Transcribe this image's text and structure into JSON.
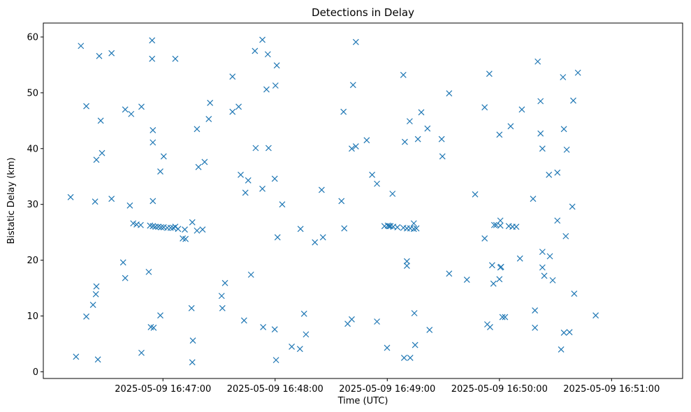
{
  "chart_data": {
    "type": "scatter",
    "title": "Detections in Delay",
    "xlabel": "Time (UTC)",
    "ylabel": "Bistatic Delay (km)",
    "marker": "x",
    "color": "#1f77b4",
    "grid": false,
    "legend": "none",
    "xlim": [
      "2025-05-09 16:45:56",
      "2025-05-09 16:51:38"
    ],
    "ylim": [
      -1.2,
      62.5
    ],
    "x_ticks": [
      "2025-05-09 16:47:00",
      "2025-05-09 16:48:00",
      "2025-05-09 16:49:00",
      "2025-05-09 16:50:00",
      "2025-05-09 16:51:00"
    ],
    "x_tick_labels": [
      "2025-05-09 16:47:00",
      "2025-05-09 16:48:00",
      "2025-05-09 16:49:00",
      "2025-05-09 16:50:00",
      "2025-05-09 16:51:00"
    ],
    "y_ticks": [
      0,
      10,
      20,
      30,
      40,
      50,
      60
    ],
    "y_tick_labels": [
      "0",
      "10",
      "20",
      "30",
      "40",
      "50",
      "60"
    ],
    "points": [
      {
        "x": "2025-05-09 16:46:10.6",
        "y": 31.3
      },
      {
        "x": "2025-05-09 16:46:13.5",
        "y": 2.7
      },
      {
        "x": "2025-05-09 16:46:16.1",
        "y": 58.4
      },
      {
        "x": "2025-05-09 16:46:19.0",
        "y": 47.6
      },
      {
        "x": "2025-05-09 16:46:19.0",
        "y": 9.9
      },
      {
        "x": "2025-05-09 16:46:22.6",
        "y": 12.0
      },
      {
        "x": "2025-05-09 16:46:23.7",
        "y": 30.5
      },
      {
        "x": "2025-05-09 16:46:24.1",
        "y": 13.9
      },
      {
        "x": "2025-05-09 16:46:24.4",
        "y": 38.0
      },
      {
        "x": "2025-05-09 16:46:24.4",
        "y": 15.3
      },
      {
        "x": "2025-05-09 16:46:25.2",
        "y": 2.2
      },
      {
        "x": "2025-05-09 16:46:25.9",
        "y": 56.6
      },
      {
        "x": "2025-05-09 16:46:26.7",
        "y": 45.0
      },
      {
        "x": "2025-05-09 16:46:27.4",
        "y": 39.2
      },
      {
        "x": "2025-05-09 16:46:32.5",
        "y": 57.1
      },
      {
        "x": "2025-05-09 16:46:32.5",
        "y": 31.0
      },
      {
        "x": "2025-05-09 16:46:38.7",
        "y": 19.6
      },
      {
        "x": "2025-05-09 16:46:39.8",
        "y": 16.8
      },
      {
        "x": "2025-05-09 16:46:39.8",
        "y": 47.0
      },
      {
        "x": "2025-05-09 16:46:42.3",
        "y": 29.8
      },
      {
        "x": "2025-05-09 16:46:43.0",
        "y": 46.2
      },
      {
        "x": "2025-05-09 16:46:44.1",
        "y": 26.6
      },
      {
        "x": "2025-05-09 16:46:45.9",
        "y": 26.4
      },
      {
        "x": "2025-05-09 16:46:48.1",
        "y": 26.3
      },
      {
        "x": "2025-05-09 16:46:48.5",
        "y": 3.4
      },
      {
        "x": "2025-05-09 16:46:48.5",
        "y": 47.5
      },
      {
        "x": "2025-05-09 16:46:52.4",
        "y": 17.9
      },
      {
        "x": "2025-05-09 16:46:53.1",
        "y": 26.2
      },
      {
        "x": "2025-05-09 16:46:53.5",
        "y": 8.0
      },
      {
        "x": "2025-05-09 16:46:54.2",
        "y": 59.4
      },
      {
        "x": "2025-05-09 16:46:54.2",
        "y": 56.1
      },
      {
        "x": "2025-05-09 16:46:54.6",
        "y": 43.3
      },
      {
        "x": "2025-05-09 16:46:54.6",
        "y": 41.1
      },
      {
        "x": "2025-05-09 16:46:54.6",
        "y": 30.6
      },
      {
        "x": "2025-05-09 16:46:54.6",
        "y": 26.1
      },
      {
        "x": "2025-05-09 16:46:55.0",
        "y": 7.9
      },
      {
        "x": "2025-05-09 16:46:56.0",
        "y": 26.0
      },
      {
        "x": "2025-05-09 16:46:57.5",
        "y": 26.0
      },
      {
        "x": "2025-05-09 16:46:58.6",
        "y": 35.9
      },
      {
        "x": "2025-05-09 16:46:58.6",
        "y": 10.1
      },
      {
        "x": "2025-05-09 16:46:59.0",
        "y": 25.9
      },
      {
        "x": "2025-05-09 16:47:00.4",
        "y": 38.6
      },
      {
        "x": "2025-05-09 16:47:00.4",
        "y": 25.9
      },
      {
        "x": "2025-05-09 16:47:02.3",
        "y": 25.8
      },
      {
        "x": "2025-05-09 16:47:04.1",
        "y": 25.8
      },
      {
        "x": "2025-05-09 16:47:05.5",
        "y": 25.8
      },
      {
        "x": "2025-05-09 16:47:06.6",
        "y": 56.1
      },
      {
        "x": "2025-05-09 16:47:06.6",
        "y": 26.0
      },
      {
        "x": "2025-05-09 16:47:08.1",
        "y": 25.6
      },
      {
        "x": "2025-05-09 16:47:10.6",
        "y": 23.9
      },
      {
        "x": "2025-05-09 16:47:11.7",
        "y": 25.5
      },
      {
        "x": "2025-05-09 16:47:12.1",
        "y": 23.8
      },
      {
        "x": "2025-05-09 16:47:15.3",
        "y": 11.4
      },
      {
        "x": "2025-05-09 16:47:15.7",
        "y": 26.8
      },
      {
        "x": "2025-05-09 16:47:15.7",
        "y": 1.7
      },
      {
        "x": "2025-05-09 16:47:16.0",
        "y": 5.6
      },
      {
        "x": "2025-05-09 16:47:18.2",
        "y": 43.5
      },
      {
        "x": "2025-05-09 16:47:18.2",
        "y": 25.3
      },
      {
        "x": "2025-05-09 16:47:19.0",
        "y": 36.7
      },
      {
        "x": "2025-05-09 16:47:21.2",
        "y": 25.5
      },
      {
        "x": "2025-05-09 16:47:22.3",
        "y": 37.6
      },
      {
        "x": "2025-05-09 16:47:24.5",
        "y": 45.3
      },
      {
        "x": "2025-05-09 16:47:25.2",
        "y": 48.2
      },
      {
        "x": "2025-05-09 16:47:31.4",
        "y": 13.6
      },
      {
        "x": "2025-05-09 16:47:31.8",
        "y": 11.4
      },
      {
        "x": "2025-05-09 16:47:33.2",
        "y": 15.9
      },
      {
        "x": "2025-05-09 16:47:37.2",
        "y": 52.9
      },
      {
        "x": "2025-05-09 16:47:37.2",
        "y": 46.6
      },
      {
        "x": "2025-05-09 16:47:40.5",
        "y": 47.5
      },
      {
        "x": "2025-05-09 16:47:41.6",
        "y": 35.3
      },
      {
        "x": "2025-05-09 16:47:43.4",
        "y": 9.2
      },
      {
        "x": "2025-05-09 16:47:44.1",
        "y": 32.1
      },
      {
        "x": "2025-05-09 16:47:45.6",
        "y": 34.3
      },
      {
        "x": "2025-05-09 16:47:47.1",
        "y": 17.4
      },
      {
        "x": "2025-05-09 16:47:49.2",
        "y": 57.5
      },
      {
        "x": "2025-05-09 16:47:49.6",
        "y": 40.1
      },
      {
        "x": "2025-05-09 16:47:53.2",
        "y": 59.5
      },
      {
        "x": "2025-05-09 16:47:53.2",
        "y": 32.8
      },
      {
        "x": "2025-05-09 16:47:53.6",
        "y": 8.0
      },
      {
        "x": "2025-05-09 16:47:55.4",
        "y": 50.6
      },
      {
        "x": "2025-05-09 16:47:56.1",
        "y": 56.9
      },
      {
        "x": "2025-05-09 16:47:56.5",
        "y": 40.1
      },
      {
        "x": "2025-05-09 16:47:59.8",
        "y": 7.6
      },
      {
        "x": "2025-05-09 16:47:59.8",
        "y": 34.6
      },
      {
        "x": "2025-05-09 16:48:00.2",
        "y": 51.3
      },
      {
        "x": "2025-05-09 16:48:00.5",
        "y": 2.1
      },
      {
        "x": "2025-05-09 16:48:00.9",
        "y": 54.9
      },
      {
        "x": "2025-05-09 16:48:01.3",
        "y": 24.1
      },
      {
        "x": "2025-05-09 16:48:03.8",
        "y": 30.0
      },
      {
        "x": "2025-05-09 16:48:08.9",
        "y": 4.5
      },
      {
        "x": "2025-05-09 16:48:13.3",
        "y": 4.1
      },
      {
        "x": "2025-05-09 16:48:13.6",
        "y": 25.6
      },
      {
        "x": "2025-05-09 16:48:15.5",
        "y": 10.4
      },
      {
        "x": "2025-05-09 16:48:16.5",
        "y": 6.7
      },
      {
        "x": "2025-05-09 16:48:21.3",
        "y": 23.2
      },
      {
        "x": "2025-05-09 16:48:24.9",
        "y": 32.6
      },
      {
        "x": "2025-05-09 16:48:25.6",
        "y": 24.1
      },
      {
        "x": "2025-05-09 16:48:35.5",
        "y": 30.6
      },
      {
        "x": "2025-05-09 16:48:36.6",
        "y": 46.6
      },
      {
        "x": "2025-05-09 16:48:37.0",
        "y": 25.7
      },
      {
        "x": "2025-05-09 16:48:38.8",
        "y": 8.6
      },
      {
        "x": "2025-05-09 16:48:41.0",
        "y": 40.0
      },
      {
        "x": "2025-05-09 16:48:41.0",
        "y": 9.4
      },
      {
        "x": "2025-05-09 16:48:41.7",
        "y": 51.4
      },
      {
        "x": "2025-05-09 16:48:43.2",
        "y": 59.1
      },
      {
        "x": "2025-05-09 16:48:43.2",
        "y": 40.4
      },
      {
        "x": "2025-05-09 16:48:49.0",
        "y": 41.5
      },
      {
        "x": "2025-05-09 16:48:51.9",
        "y": 35.3
      },
      {
        "x": "2025-05-09 16:48:54.5",
        "y": 33.7
      },
      {
        "x": "2025-05-09 16:48:54.5",
        "y": 9.0
      },
      {
        "x": "2025-05-09 16:48:58.5",
        "y": 26.1
      },
      {
        "x": "2025-05-09 16:48:59.9",
        "y": 4.3
      },
      {
        "x": "2025-05-09 16:49:00.3",
        "y": 26.2
      },
      {
        "x": "2025-05-09 16:49:01.0",
        "y": 26.1
      },
      {
        "x": "2025-05-09 16:49:01.7",
        "y": 26.1
      },
      {
        "x": "2025-05-09 16:49:02.8",
        "y": 31.9
      },
      {
        "x": "2025-05-09 16:49:03.2",
        "y": 26.0
      },
      {
        "x": "2025-05-09 16:49:05.4",
        "y": 25.9
      },
      {
        "x": "2025-05-09 16:49:08.6",
        "y": 53.2
      },
      {
        "x": "2025-05-09 16:49:08.6",
        "y": 25.8
      },
      {
        "x": "2025-05-09 16:49:09.0",
        "y": 2.5
      },
      {
        "x": "2025-05-09 16:49:09.4",
        "y": 41.2
      },
      {
        "x": "2025-05-09 16:49:10.5",
        "y": 19.8
      },
      {
        "x": "2025-05-09 16:49:10.5",
        "y": 19.0
      },
      {
        "x": "2025-05-09 16:49:10.5",
        "y": 25.7
      },
      {
        "x": "2025-05-09 16:49:12.0",
        "y": 44.9
      },
      {
        "x": "2025-05-09 16:49:12.3",
        "y": 25.7
      },
      {
        "x": "2025-05-09 16:49:12.3",
        "y": 2.5
      },
      {
        "x": "2025-05-09 16:49:14.2",
        "y": 26.6
      },
      {
        "x": "2025-05-09 16:49:14.2",
        "y": 25.6
      },
      {
        "x": "2025-05-09 16:49:14.5",
        "y": 10.5
      },
      {
        "x": "2025-05-09 16:49:14.9",
        "y": 4.8
      },
      {
        "x": "2025-05-09 16:49:15.6",
        "y": 25.7
      },
      {
        "x": "2025-05-09 16:49:16.4",
        "y": 41.7
      },
      {
        "x": "2025-05-09 16:49:18.2",
        "y": 46.5
      },
      {
        "x": "2025-05-09 16:49:21.5",
        "y": 43.6
      },
      {
        "x": "2025-05-09 16:49:22.6",
        "y": 7.5
      },
      {
        "x": "2025-05-09 16:49:29.1",
        "y": 41.7
      },
      {
        "x": "2025-05-09 16:49:29.5",
        "y": 38.6
      },
      {
        "x": "2025-05-09 16:49:33.1",
        "y": 49.9
      },
      {
        "x": "2025-05-09 16:49:33.1",
        "y": 17.6
      },
      {
        "x": "2025-05-09 16:49:42.6",
        "y": 16.5
      },
      {
        "x": "2025-05-09 16:49:47.0",
        "y": 31.8
      },
      {
        "x": "2025-05-09 16:49:52.1",
        "y": 47.4
      },
      {
        "x": "2025-05-09 16:49:52.1",
        "y": 23.9
      },
      {
        "x": "2025-05-09 16:49:53.5",
        "y": 8.5
      },
      {
        "x": "2025-05-09 16:49:54.6",
        "y": 53.4
      },
      {
        "x": "2025-05-09 16:49:55.0",
        "y": 8.0
      },
      {
        "x": "2025-05-09 16:49:56.1",
        "y": 19.1
      },
      {
        "x": "2025-05-09 16:49:56.8",
        "y": 15.8
      },
      {
        "x": "2025-05-09 16:49:57.2",
        "y": 26.3
      },
      {
        "x": "2025-05-09 16:49:58.3",
        "y": 26.3
      },
      {
        "x": "2025-05-09 16:50:00.0",
        "y": 42.5
      },
      {
        "x": "2025-05-09 16:50:00.0",
        "y": 16.6
      },
      {
        "x": "2025-05-09 16:50:00.5",
        "y": 26.2
      },
      {
        "x": "2025-05-09 16:50:00.5",
        "y": 27.1
      },
      {
        "x": "2025-05-09 16:50:00.5",
        "y": 18.7
      },
      {
        "x": "2025-05-09 16:50:00.9",
        "y": 18.8
      },
      {
        "x": "2025-05-09 16:50:01.6",
        "y": 9.8
      },
      {
        "x": "2025-05-09 16:50:03.0",
        "y": 9.8
      },
      {
        "x": "2025-05-09 16:50:05.0",
        "y": 26.1
      },
      {
        "x": "2025-05-09 16:50:06.0",
        "y": 44.0
      },
      {
        "x": "2025-05-09 16:50:07.0",
        "y": 26.0
      },
      {
        "x": "2025-05-09 16:50:09.0",
        "y": 26.0
      },
      {
        "x": "2025-05-09 16:50:11.0",
        "y": 20.3
      },
      {
        "x": "2025-05-09 16:50:12.0",
        "y": 47.0
      },
      {
        "x": "2025-05-09 16:50:18.0",
        "y": 31.0
      },
      {
        "x": "2025-05-09 16:50:19.0",
        "y": 11.0
      },
      {
        "x": "2025-05-09 16:50:19.0",
        "y": 7.9
      },
      {
        "x": "2025-05-09 16:50:20.5",
        "y": 55.6
      },
      {
        "x": "2025-05-09 16:50:22.0",
        "y": 48.5
      },
      {
        "x": "2025-05-09 16:50:22.0",
        "y": 42.7
      },
      {
        "x": "2025-05-09 16:50:23.0",
        "y": 40.0
      },
      {
        "x": "2025-05-09 16:50:23.0",
        "y": 21.5
      },
      {
        "x": "2025-05-09 16:50:23.0",
        "y": 18.7
      },
      {
        "x": "2025-05-09 16:50:24.0",
        "y": 17.2
      },
      {
        "x": "2025-05-09 16:50:26.5",
        "y": 35.3
      },
      {
        "x": "2025-05-09 16:50:27.0",
        "y": 20.7
      },
      {
        "x": "2025-05-09 16:50:28.5",
        "y": 16.4
      },
      {
        "x": "2025-05-09 16:50:31.0",
        "y": 35.7
      },
      {
        "x": "2025-05-09 16:50:31.0",
        "y": 27.1
      },
      {
        "x": "2025-05-09 16:50:33.0",
        "y": 4.0
      },
      {
        "x": "2025-05-09 16:50:34.0",
        "y": 52.8
      },
      {
        "x": "2025-05-09 16:50:34.5",
        "y": 43.5
      },
      {
        "x": "2025-05-09 16:50:34.5",
        "y": 7.0
      },
      {
        "x": "2025-05-09 16:50:35.5",
        "y": 24.3
      },
      {
        "x": "2025-05-09 16:50:36.0",
        "y": 39.8
      },
      {
        "x": "2025-05-09 16:50:37.5",
        "y": 7.1
      },
      {
        "x": "2025-05-09 16:50:39.0",
        "y": 29.6
      },
      {
        "x": "2025-05-09 16:50:39.5",
        "y": 48.6
      },
      {
        "x": "2025-05-09 16:50:40.0",
        "y": 14.0
      },
      {
        "x": "2025-05-09 16:50:42.0",
        "y": 53.6
      },
      {
        "x": "2025-05-09 16:50:51.5",
        "y": 10.1
      }
    ]
  }
}
